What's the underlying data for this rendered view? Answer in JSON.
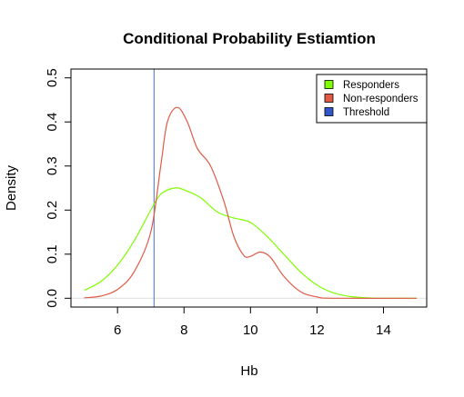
{
  "chart_data": {
    "type": "line",
    "title": "Conditional Probability Estiamtion",
    "xlabel": "Hb",
    "ylabel": "Density",
    "xlim": [
      4.6,
      15.3
    ],
    "ylim": [
      -0.02,
      0.52
    ],
    "xticks": [
      6,
      8,
      10,
      12,
      14
    ],
    "yticks": [
      0.0,
      0.1,
      0.2,
      0.3,
      0.4,
      0.5
    ],
    "grid": false,
    "legend": {
      "position": "top-right",
      "entries": [
        {
          "label": "Responders",
          "color": "#7fff00"
        },
        {
          "label": "Non-responders",
          "color": "#e05a46"
        },
        {
          "label": "Threshold",
          "color": "#3355cc"
        }
      ]
    },
    "baseline": {
      "y": 0,
      "color": "#dddddd"
    },
    "threshold": {
      "x": 7.1,
      "color": "#6b88c4"
    },
    "series": [
      {
        "name": "Responders",
        "color": "#7fff00",
        "points": [
          [
            5.0,
            0.018
          ],
          [
            5.5,
            0.038
          ],
          [
            6.0,
            0.075
          ],
          [
            6.5,
            0.13
          ],
          [
            7.0,
            0.2
          ],
          [
            7.3,
            0.236
          ],
          [
            7.7,
            0.25
          ],
          [
            8.0,
            0.246
          ],
          [
            8.5,
            0.228
          ],
          [
            9.0,
            0.196
          ],
          [
            9.5,
            0.182
          ],
          [
            10.0,
            0.172
          ],
          [
            10.5,
            0.14
          ],
          [
            11.0,
            0.1
          ],
          [
            11.5,
            0.06
          ],
          [
            12.0,
            0.03
          ],
          [
            12.5,
            0.012
          ],
          [
            13.0,
            0.004
          ],
          [
            13.5,
            0.001
          ],
          [
            14.0,
            0.0
          ],
          [
            15.0,
            0.0
          ]
        ]
      },
      {
        "name": "Non-responders",
        "color": "#e05a46",
        "points": [
          [
            5.0,
            0.001
          ],
          [
            5.5,
            0.005
          ],
          [
            6.0,
            0.02
          ],
          [
            6.5,
            0.06
          ],
          [
            7.0,
            0.15
          ],
          [
            7.3,
            0.3
          ],
          [
            7.5,
            0.4
          ],
          [
            7.8,
            0.433
          ],
          [
            8.1,
            0.4
          ],
          [
            8.4,
            0.34
          ],
          [
            8.8,
            0.3
          ],
          [
            9.2,
            0.22
          ],
          [
            9.5,
            0.14
          ],
          [
            9.8,
            0.097
          ],
          [
            10.0,
            0.095
          ],
          [
            10.3,
            0.105
          ],
          [
            10.6,
            0.093
          ],
          [
            11.0,
            0.05
          ],
          [
            11.5,
            0.015
          ],
          [
            12.0,
            0.003
          ],
          [
            12.5,
            0.0
          ],
          [
            15.0,
            0.0
          ]
        ]
      }
    ]
  }
}
